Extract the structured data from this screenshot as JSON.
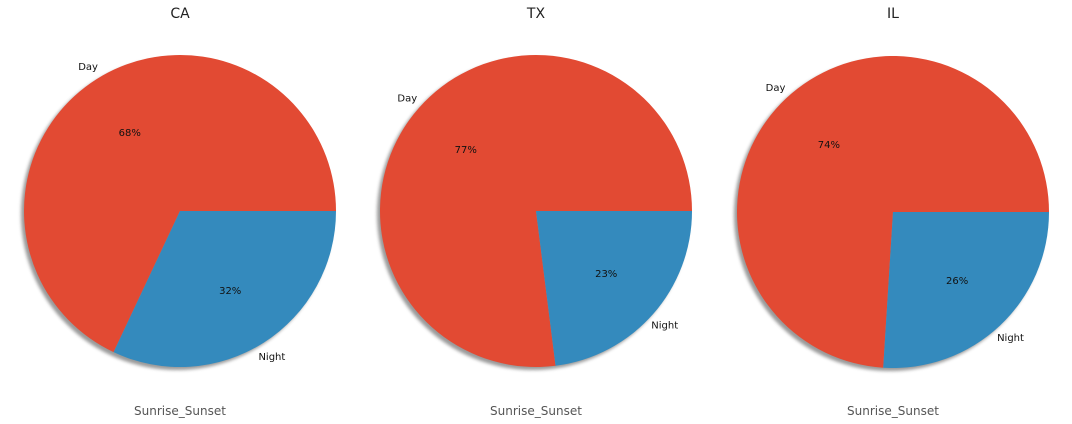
{
  "chart_data": [
    {
      "type": "pie",
      "title": "CA",
      "xlabel": "Sunrise_Sunset",
      "categories": [
        "Day",
        "Night"
      ],
      "values": [
        68,
        32
      ],
      "value_labels": [
        "68%",
        "32%"
      ],
      "colors": [
        "#E24A33",
        "#348ABD"
      ],
      "shadow": true
    },
    {
      "type": "pie",
      "title": "TX",
      "xlabel": "Sunrise_Sunset",
      "categories": [
        "Day",
        "Night"
      ],
      "values": [
        77,
        23
      ],
      "value_labels": [
        "77%",
        "23%"
      ],
      "colors": [
        "#E24A33",
        "#348ABD"
      ],
      "shadow": true
    },
    {
      "type": "pie",
      "title": "IL",
      "xlabel": "Sunrise_Sunset",
      "categories": [
        "Day",
        "Night"
      ],
      "values": [
        74,
        26
      ],
      "value_labels": [
        "74%",
        "26%"
      ],
      "colors": [
        "#E24A33",
        "#348ABD"
      ],
      "shadow": true
    }
  ]
}
